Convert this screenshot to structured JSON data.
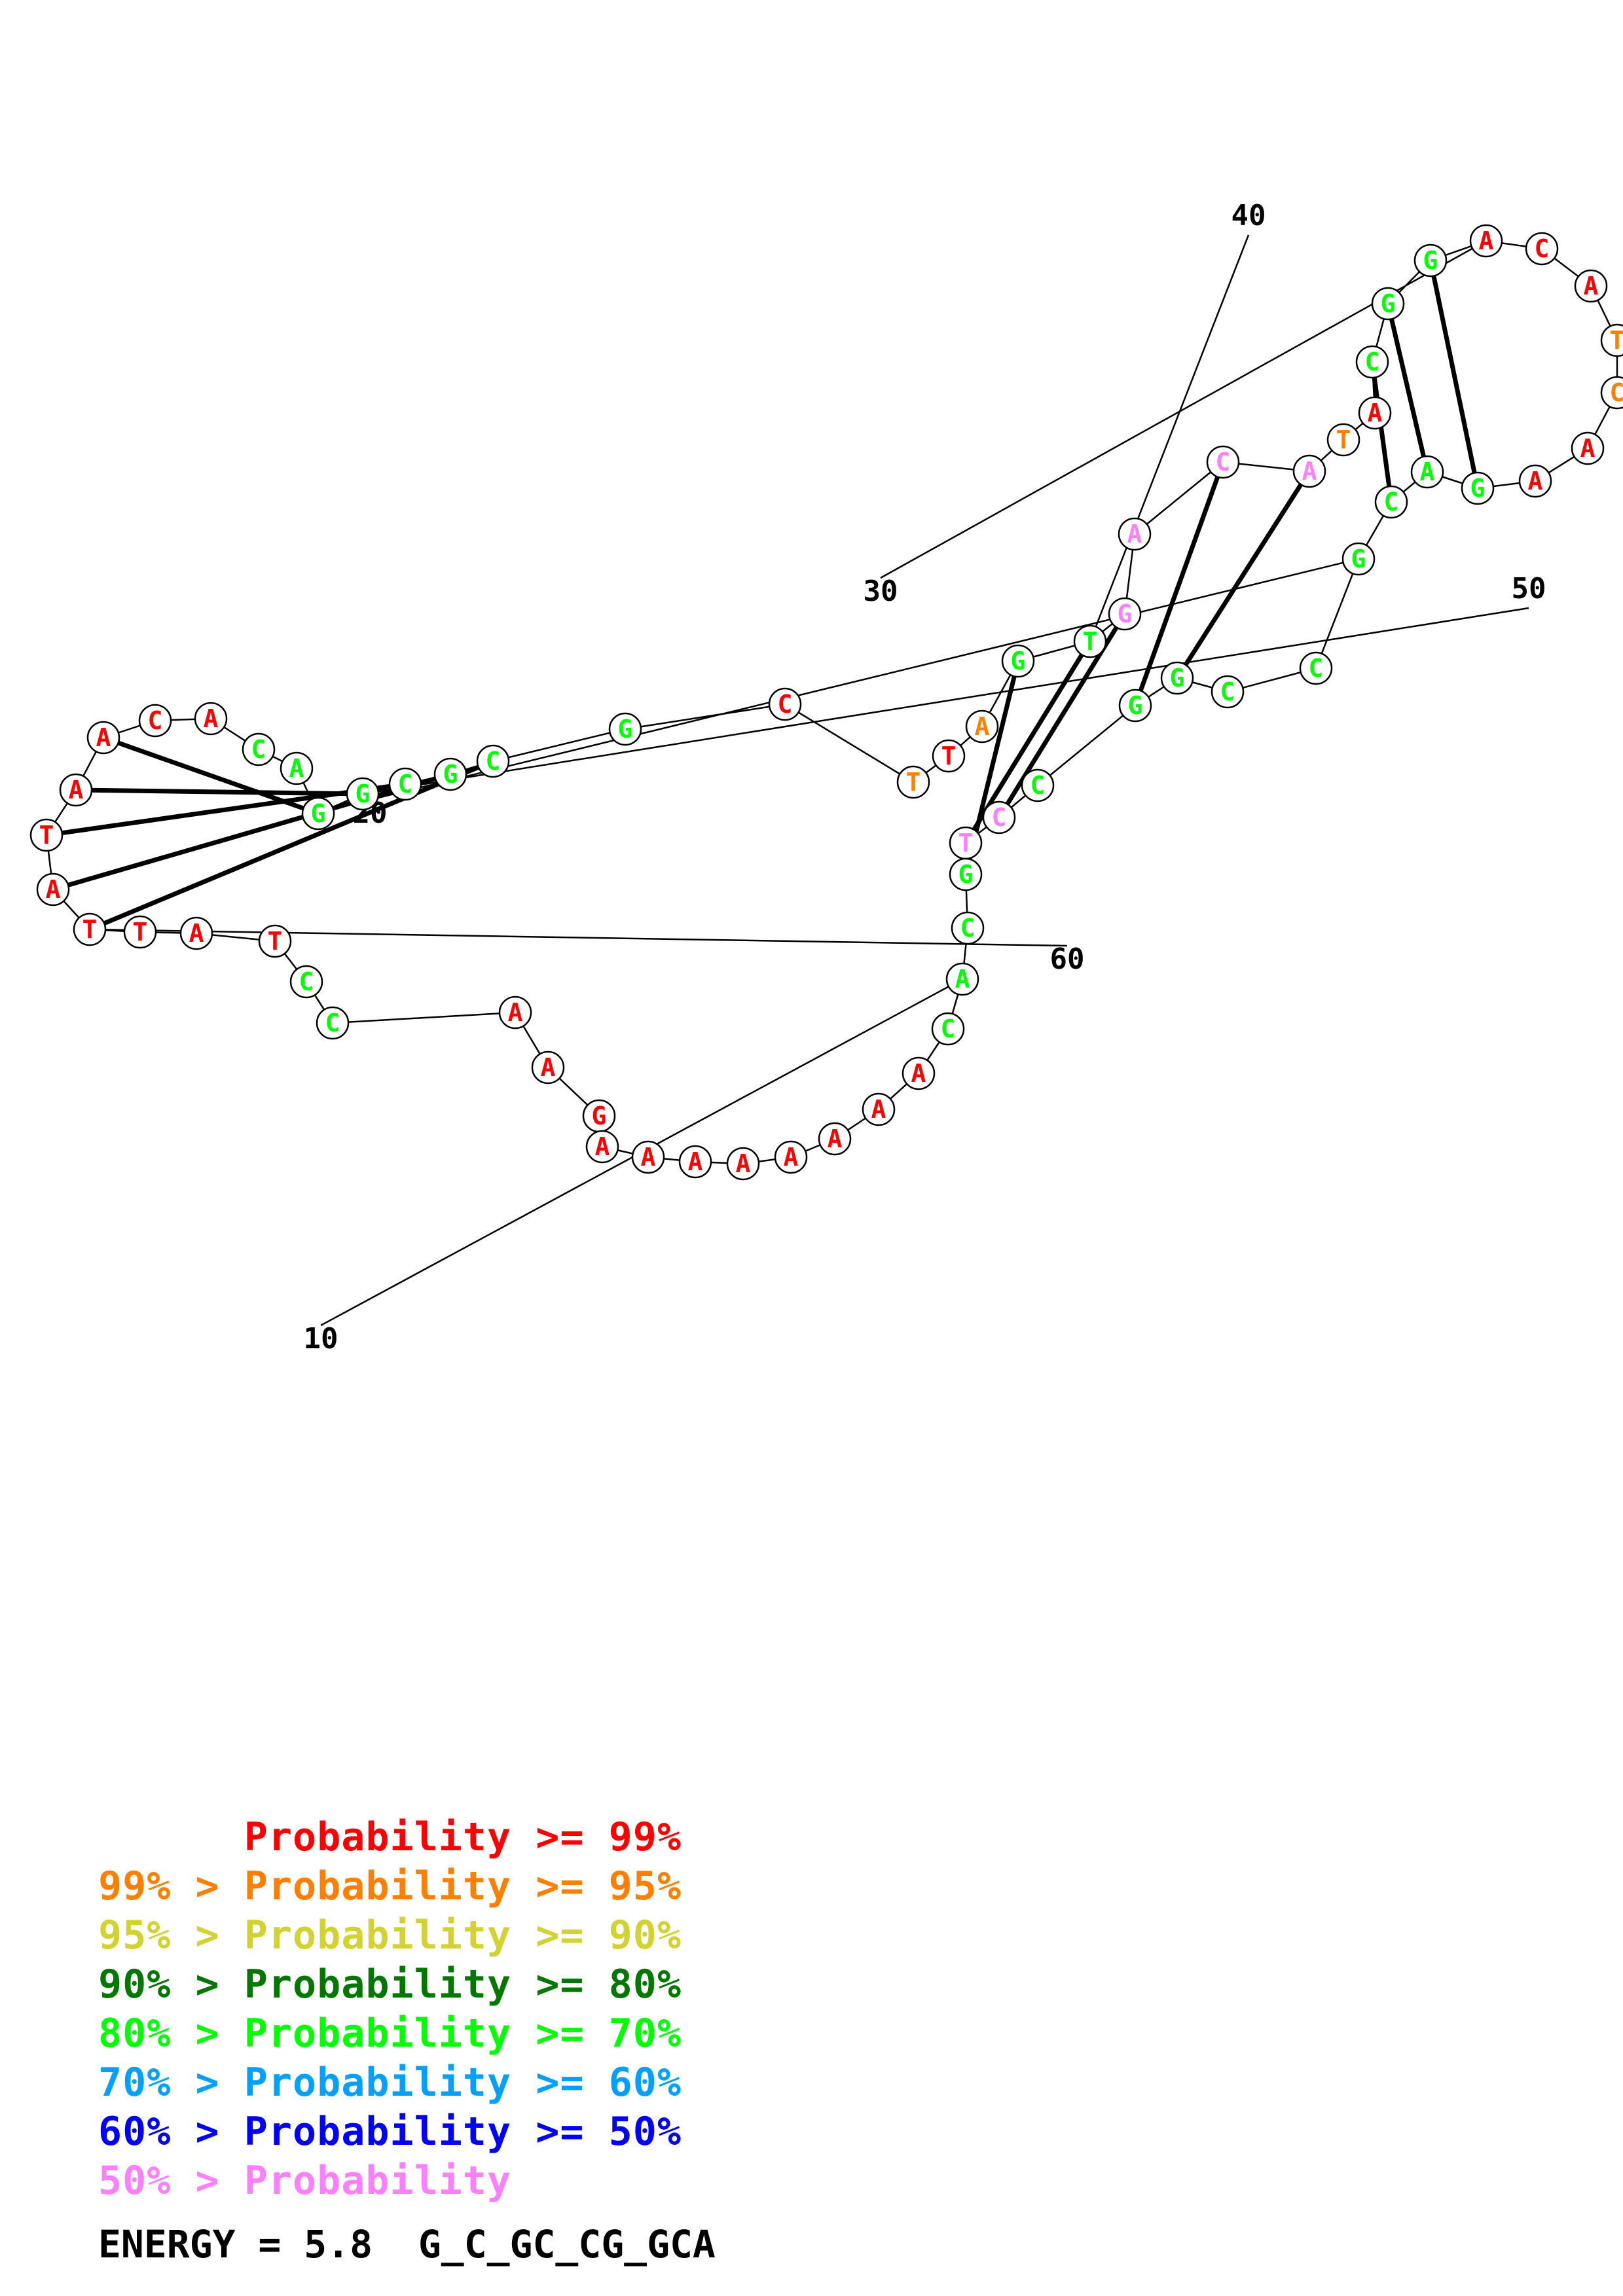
{
  "structure": {
    "sequence": [
      "G",
      "A",
      "A",
      "C",
      "C",
      "T",
      "A",
      "T",
      "T",
      "A",
      "T",
      "A",
      "A",
      "C",
      "A",
      "C",
      "A",
      "G",
      "G",
      "C",
      "G",
      "C",
      "G",
      "C",
      "T",
      "T",
      "A",
      "G",
      "T",
      "G",
      "A",
      "C",
      "A",
      "T",
      "A",
      "C",
      "G",
      "G",
      "A",
      "C",
      "A",
      "T",
      "C",
      "A",
      "A",
      "G",
      "A",
      "C",
      "G",
      "C",
      "C",
      "G",
      "G",
      "C",
      "C",
      "T",
      "G",
      "C",
      "A",
      "C",
      "A",
      "A",
      "A",
      "A",
      "A",
      "A",
      "A",
      "A"
    ],
    "probability_class": [
      0,
      0,
      0,
      4,
      4,
      0,
      0,
      0,
      0,
      0,
      0,
      0,
      0,
      0,
      0,
      4,
      4,
      4,
      4,
      4,
      4,
      4,
      4,
      0,
      1,
      0,
      1,
      4,
      4,
      7,
      7,
      7,
      7,
      1,
      0,
      4,
      4,
      4,
      0,
      0,
      0,
      1,
      1,
      0,
      0,
      4,
      4,
      4,
      4,
      4,
      4,
      4,
      4,
      4,
      7,
      7,
      4,
      4,
      4,
      4,
      0,
      0,
      0,
      0,
      0,
      0,
      0,
      0
    ],
    "numbered_positions": [
      10,
      20,
      30,
      40,
      50,
      60
    ]
  },
  "legend": [
    {
      "prefix": "    ",
      "label": "Probability >= 99%",
      "color": "#ff0000"
    },
    {
      "prefix": "99% > ",
      "label": "Probability >= 95%",
      "color": "#ff8000"
    },
    {
      "prefix": "95% > ",
      "label": "Probability >= 90%",
      "color": "#d2d232"
    },
    {
      "prefix": "90% > ",
      "label": "Probability >= 80%",
      "color": "#007800"
    },
    {
      "prefix": "80% > ",
      "label": "Probability >= 70%",
      "color": "#00ff00"
    },
    {
      "prefix": "70% > ",
      "label": "Probability >= 60%",
      "color": "#00a0ff"
    },
    {
      "prefix": "60% > ",
      "label": "Probability >= 50%",
      "color": "#0000ff"
    },
    {
      "prefix": "50% > ",
      "label": "Probability",
      "color": "#ff80ff"
    }
  ],
  "energy": {
    "label": "ENERGY = 5.8",
    "constraint": "G_C_GC_CG_GCA"
  }
}
